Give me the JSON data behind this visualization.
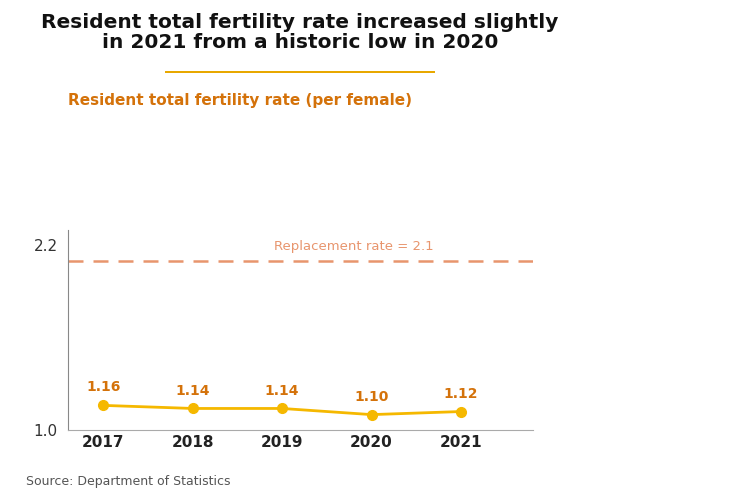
{
  "title_line1": "Resident total fertility rate increased slightly",
  "title_line2": "in 2021 from a historic low in 2020",
  "subtitle": "Resident total fertility rate (per female)",
  "source": "Source: Department of Statistics",
  "years": [
    2017,
    2018,
    2019,
    2020,
    2021
  ],
  "values": [
    1.16,
    1.14,
    1.14,
    1.1,
    1.12
  ],
  "line_color": "#F5B800",
  "marker_color": "#F5B800",
  "replacement_rate": 2.1,
  "replacement_label": "Replacement rate = 2.1",
  "replacement_color": "#E8956D",
  "subtitle_color": "#D4720A",
  "title_color": "#111111",
  "separator_color": "#E8A800",
  "ylim_min": 1.0,
  "ylim_max": 2.3,
  "yticks": [
    1.0,
    2.2
  ],
  "bg_color": "#FFFFFF",
  "annotation_color": "#D4720A"
}
